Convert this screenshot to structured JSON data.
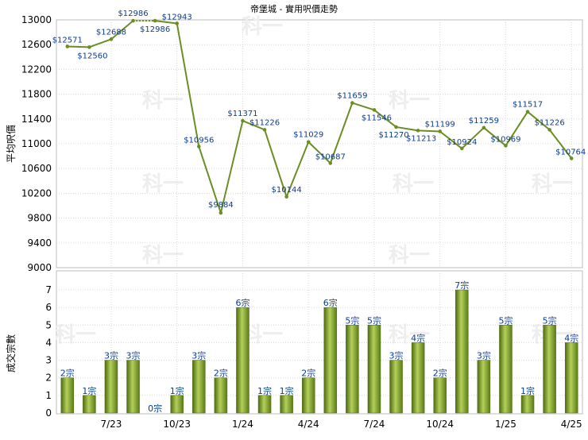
{
  "title": "帝堡城 - 實用呎價走勢",
  "price_chart": {
    "ylabel": "平均呎價",
    "chart_data": {
      "type": "line",
      "ylim": [
        9000,
        13000
      ],
      "yticks": [
        9000,
        9400,
        9800,
        10200,
        10600,
        11000,
        11400,
        11800,
        12200,
        12600,
        13000
      ],
      "grid": true,
      "color": "#6b8e23",
      "points": [
        {
          "i": 0,
          "value": 12571,
          "label": "$12571"
        },
        {
          "i": 1,
          "value": 12560,
          "label": "$12560"
        },
        {
          "i": 2,
          "value": 12688,
          "label": "$12688"
        },
        {
          "i": 3,
          "value": 12986,
          "label": "$12986"
        },
        {
          "i": 4,
          "value": 12986,
          "label": "$12986"
        },
        {
          "i": 5,
          "value": 12943,
          "label": "$12943"
        },
        {
          "i": 6,
          "value": 10956,
          "label": "$10956"
        },
        {
          "i": 7,
          "value": 9884,
          "label": "$9884"
        },
        {
          "i": 8,
          "value": 11371,
          "label": "$11371"
        },
        {
          "i": 9,
          "value": 11226,
          "label": "$11226"
        },
        {
          "i": 10,
          "value": 10144,
          "label": "$10144"
        },
        {
          "i": 11,
          "value": 11029,
          "label": "$11029"
        },
        {
          "i": 12,
          "value": 10687,
          "label": "$10687"
        },
        {
          "i": 13,
          "value": 11659,
          "label": "$11659"
        },
        {
          "i": 14,
          "value": 11546,
          "label": "$11546"
        },
        {
          "i": 15,
          "value": 11270,
          "label": "$11270"
        },
        {
          "i": 16,
          "value": 11213,
          "label": "$11213"
        },
        {
          "i": 17,
          "value": 11199,
          "label": "$11199"
        },
        {
          "i": 18,
          "value": 10924,
          "label": "$10924"
        },
        {
          "i": 19,
          "value": 11259,
          "label": "$11259"
        },
        {
          "i": 20,
          "value": 10969,
          "label": "$10969"
        },
        {
          "i": 21,
          "value": 11517,
          "label": "$11517"
        },
        {
          "i": 22,
          "value": 11226,
          "label": "$11226"
        },
        {
          "i": 23,
          "value": 10764,
          "label": "$10764"
        }
      ],
      "gap_segments": [
        [
          3,
          4
        ]
      ]
    }
  },
  "volume_chart": {
    "ylabel": "成交宗數",
    "chart_data": {
      "type": "bar",
      "ylim": [
        0,
        7
      ],
      "yticks": [
        0,
        1,
        2,
        3,
        4,
        5,
        6,
        7
      ],
      "color": "#6b8e23",
      "values": [
        2,
        1,
        3,
        3,
        0,
        1,
        3,
        2,
        6,
        1,
        1,
        2,
        6,
        5,
        5,
        3,
        4,
        2,
        7,
        3,
        5,
        1,
        5,
        4
      ],
      "labels": [
        "2宗",
        "1宗",
        "3宗",
        "3宗",
        "0宗",
        "1宗",
        "3宗",
        "2宗",
        "6宗",
        "1宗",
        "1宗",
        "2宗",
        "6宗",
        "5宗",
        "5宗",
        "3宗",
        "4宗",
        "2宗",
        "7宗",
        "3宗",
        "5宗",
        "1宗",
        "5宗",
        "4宗"
      ]
    }
  },
  "x_axis": {
    "ticks": [
      {
        "i": 2,
        "label": "7/23"
      },
      {
        "i": 5,
        "label": "10/23"
      },
      {
        "i": 8,
        "label": "1/24"
      },
      {
        "i": 11,
        "label": "4/24"
      },
      {
        "i": 14,
        "label": "7/24"
      },
      {
        "i": 17,
        "label": "10/24"
      },
      {
        "i": 20,
        "label": "1/25"
      },
      {
        "i": 23,
        "label": "4/25"
      }
    ]
  },
  "watermark": "科一"
}
